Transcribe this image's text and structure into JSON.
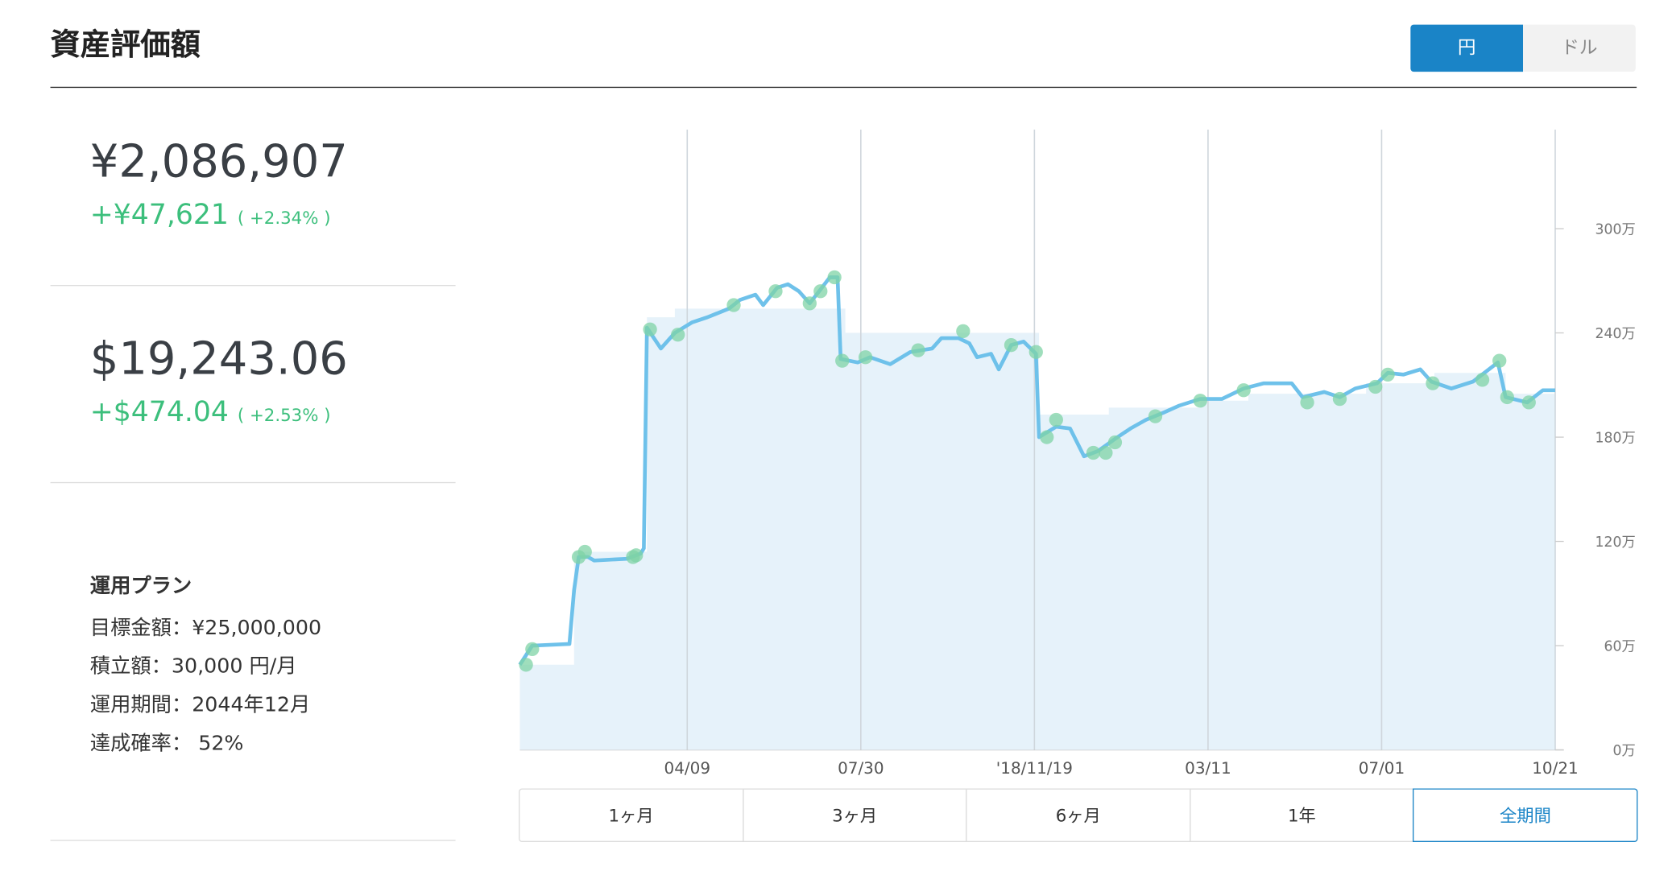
{
  "header": {
    "title": "資産評価額",
    "toggle": [
      "円",
      "ドル"
    ]
  },
  "summary": [
    {
      "amount": "¥2,086,907",
      "change": "+¥47,621",
      "percent": "( +2.34% )"
    },
    {
      "amount": "$19,243.06",
      "change": "+$474.04",
      "percent": "( +2.53% )"
    }
  ],
  "plan": {
    "title": "運用プラン",
    "lines": [
      "目標金額：¥25,000,000",
      "積立額：30,000 円/月",
      "運用期間：2044年12月",
      "達成確率： 52%"
    ]
  },
  "ranges": [
    "1ヶ月",
    "3ヶ月",
    "6ヶ月",
    "1年",
    "全期間"
  ],
  "chart_data": {
    "type": "line",
    "xlim": [
      0,
      668
    ],
    "xticks": [
      {
        "value": 108,
        "label": "04/09"
      },
      {
        "value": 220,
        "label": "07/30"
      },
      {
        "value": 332,
        "label": "'18/11/19"
      },
      {
        "value": 444,
        "label": "03/11"
      },
      {
        "value": 556,
        "label": "07/01"
      },
      {
        "value": 668,
        "label": "10/21"
      }
    ],
    "ylim": [
      0,
      3570000
    ],
    "yticks": [
      {
        "value": 0,
        "label": "0万"
      },
      {
        "value": 600000,
        "label": "60万"
      },
      {
        "value": 1200000,
        "label": "120万"
      },
      {
        "value": 1800000,
        "label": "180万"
      },
      {
        "value": 2400000,
        "label": "240万"
      },
      {
        "value": 3000000,
        "label": "300万"
      }
    ],
    "grid": true,
    "series": [
      {
        "color": "#6ec1ea",
        "x": [
          0,
          8,
          32,
          35,
          38,
          44,
          48,
          69,
          78,
          80,
          82,
          91,
          100,
          111,
          121,
          135,
          142,
          152,
          157,
          166,
          173,
          180,
          187,
          194,
          200,
          205,
          207,
          218,
          226,
          239,
          252,
          266,
          272,
          283,
          290,
          295,
          304,
          309,
          317,
          325,
          333,
          335,
          346,
          355,
          364,
          373,
          384,
          394,
          404,
          415,
          425,
          439,
          453,
          467,
          480,
          498,
          505,
          519,
          529,
          539,
          553,
          560,
          570,
          581,
          588,
          601,
          615,
          631,
          636,
          650,
          660,
          668
        ],
        "values": [
          490000,
          600000,
          610000,
          920000,
          1110000,
          1110000,
          1090000,
          1100000,
          1130000,
          1160000,
          2430000,
          2310000,
          2400000,
          2460000,
          2490000,
          2540000,
          2590000,
          2620000,
          2560000,
          2660000,
          2680000,
          2640000,
          2570000,
          2650000,
          2720000,
          2720000,
          2250000,
          2230000,
          2260000,
          2220000,
          2290000,
          2310000,
          2370000,
          2370000,
          2340000,
          2260000,
          2280000,
          2190000,
          2330000,
          2350000,
          2280000,
          1800000,
          1860000,
          1850000,
          1690000,
          1720000,
          1790000,
          1850000,
          1900000,
          1940000,
          1980000,
          2020000,
          2020000,
          2080000,
          2110000,
          2110000,
          2030000,
          2060000,
          2030000,
          2080000,
          2110000,
          2170000,
          2160000,
          2190000,
          2120000,
          2080000,
          2120000,
          2230000,
          2030000,
          2000000,
          2070000,
          2070000
        ]
      },
      {
        "color": "#e6f2fa",
        "step": true,
        "x": [
          0,
          35,
          82,
          100,
          210,
          335,
          380,
          439,
          470,
          546,
          590,
          636,
          668
        ],
        "values": [
          490000,
          1140000,
          2490000,
          2540000,
          2400000,
          1930000,
          1970000,
          2010000,
          2050000,
          2110000,
          2170000,
          2050000,
          2050000
        ]
      },
      {
        "color": "#7fd3a6",
        "scatter": true,
        "x": [
          4,
          8,
          38,
          42,
          73,
          75,
          84,
          102,
          138,
          165,
          187,
          194,
          203,
          208,
          223,
          257,
          286,
          317,
          333,
          340,
          346,
          370,
          378,
          384,
          410,
          439,
          467,
          508,
          529,
          552,
          560,
          589,
          621,
          632,
          637,
          651
        ],
        "values": [
          490000,
          580000,
          1110000,
          1140000,
          1110000,
          1120000,
          2420000,
          2390000,
          2560000,
          2640000,
          2570000,
          2640000,
          2720000,
          2240000,
          2260000,
          2300000,
          2410000,
          2330000,
          2290000,
          1800000,
          1900000,
          1710000,
          1710000,
          1770000,
          1920000,
          2010000,
          2070000,
          2000000,
          2020000,
          2090000,
          2160000,
          2110000,
          2130000,
          2240000,
          2030000,
          2000000
        ]
      }
    ]
  }
}
